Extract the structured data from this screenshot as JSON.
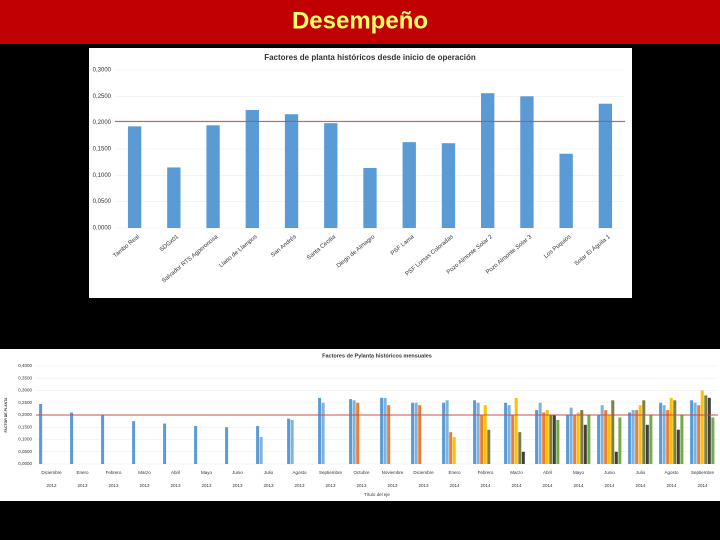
{
  "header": {
    "title": "Desempeño"
  },
  "chart_data": [
    {
      "type": "bar",
      "title": "Factores de planta históricos desde inicio de operación",
      "categories": [
        "Tambo Real",
        "SDGx01",
        "Salvador RTS Agperonosa",
        "Llano de Llampos",
        "San Andrés",
        "Santa Cecilia",
        "Diego de Almagro",
        "PSF Lama",
        "PSF Lomas Coloradas",
        "Pozo Almonte Solar 2",
        "Pozo Almonte Solar 3",
        "Los Puquios",
        "Solar El Águila 1"
      ],
      "values": [
        0.193,
        0.115,
        0.195,
        0.224,
        0.216,
        0.199,
        0.114,
        0.163,
        0.161,
        0.256,
        0.25,
        0.141,
        0.236
      ],
      "color": "#5b9bd5",
      "reference_line": 0.2025,
      "reference_color": "#c0504d",
      "ylim": [
        0,
        0.3
      ],
      "yticks": [
        {
          "value": 0,
          "label": "0,0000"
        },
        {
          "value": 0.05,
          "label": "0,0500"
        },
        {
          "value": 0.1,
          "label": "0,1000"
        },
        {
          "value": 0.15,
          "label": "0,1500"
        },
        {
          "value": 0.2,
          "label": "0,2000"
        },
        {
          "value": 0.25,
          "label": "0,2500"
        },
        {
          "value": 0.3,
          "label": "0,3000"
        }
      ]
    },
    {
      "type": "bar",
      "title": "Factores de Pylanta históricos mensuales",
      "y_label": "FACTOR DE PLANTA",
      "x_label": "Título del eje",
      "categories": [
        "Diciembre",
        "Enero",
        "Febrero",
        "Marzo",
        "Abril",
        "Mayo",
        "Junio",
        "Julio",
        "Agosto",
        "Septiembre",
        "Octubre",
        "Noviembre",
        "Diciembre",
        "Enero",
        "Febrero",
        "Marzo",
        "Abril",
        "Mayo",
        "Junio",
        "Julio",
        "Agosto",
        "Septiembre"
      ],
      "category_years": [
        "2012",
        "2013",
        "2013",
        "2013",
        "2013",
        "2013",
        "2013",
        "2013",
        "2013",
        "2013",
        "2013",
        "2013",
        "2013",
        "2014",
        "2014",
        "2014",
        "2014",
        "2014",
        "2014",
        "2014",
        "2014",
        "2014"
      ],
      "series": [
        {
          "color": "#5b9bd5",
          "values": [
            0.245,
            0.21,
            0.2,
            0.175,
            0.165,
            0.155,
            0.15,
            0.155,
            0.185,
            0.27,
            0.265,
            0.27,
            0.25,
            0.25,
            0.26,
            0.25,
            0.22,
            0.2,
            0.2,
            0.21,
            0.25,
            0.26
          ]
        },
        {
          "color": "#7eb3e0",
          "values": [
            null,
            null,
            null,
            null,
            null,
            null,
            null,
            0.11,
            0.18,
            0.25,
            0.26,
            0.27,
            0.25,
            0.26,
            0.25,
            0.24,
            0.25,
            0.23,
            0.24,
            0.22,
            0.24,
            0.25
          ]
        },
        {
          "color": "#ed7d31",
          "values": [
            null,
            null,
            null,
            null,
            null,
            null,
            null,
            null,
            null,
            null,
            0.25,
            0.24,
            0.24,
            0.13,
            0.2,
            0.2,
            0.21,
            0.2,
            0.22,
            0.22,
            0.22,
            0.24
          ]
        },
        {
          "color": "#ffc000",
          "values": [
            null,
            null,
            null,
            null,
            null,
            null,
            null,
            null,
            null,
            null,
            null,
            null,
            null,
            0.11,
            0.24,
            0.27,
            0.22,
            0.21,
            0.2,
            0.24,
            0.27,
            0.3
          ]
        },
        {
          "color": "#7f7f3f",
          "values": [
            null,
            null,
            null,
            null,
            null,
            null,
            null,
            null,
            null,
            null,
            null,
            null,
            null,
            null,
            0.14,
            0.13,
            0.2,
            0.22,
            0.26,
            0.26,
            0.26,
            0.28
          ]
        },
        {
          "color": "#404040",
          "values": [
            null,
            null,
            null,
            null,
            null,
            null,
            null,
            null,
            null,
            null,
            null,
            null,
            null,
            null,
            null,
            0.05,
            0.2,
            0.16,
            0.05,
            0.16,
            0.14,
            0.27
          ]
        },
        {
          "color": "#70ad47",
          "values": [
            null,
            null,
            null,
            null,
            null,
            null,
            null,
            null,
            null,
            null,
            null,
            null,
            null,
            null,
            null,
            null,
            0.18,
            0.2,
            0.19,
            0.2,
            0.2,
            0.19
          ]
        }
      ],
      "reference_line": 0.2,
      "reference_color": "#c0504d",
      "ylim": [
        0,
        0.4
      ],
      "yticks": [
        {
          "value": 0,
          "label": "0,0000"
        },
        {
          "value": 0.05,
          "label": "0,0500"
        },
        {
          "value": 0.1,
          "label": "0,1000"
        },
        {
          "value": 0.15,
          "label": "0,1500"
        },
        {
          "value": 0.2,
          "label": "0,2000"
        },
        {
          "value": 0.25,
          "label": "0,2500"
        },
        {
          "value": 0.3,
          "label": "0,3000"
        },
        {
          "value": 0.35,
          "label": "0,3500"
        },
        {
          "value": 0.4,
          "label": "0,4000"
        }
      ]
    }
  ]
}
